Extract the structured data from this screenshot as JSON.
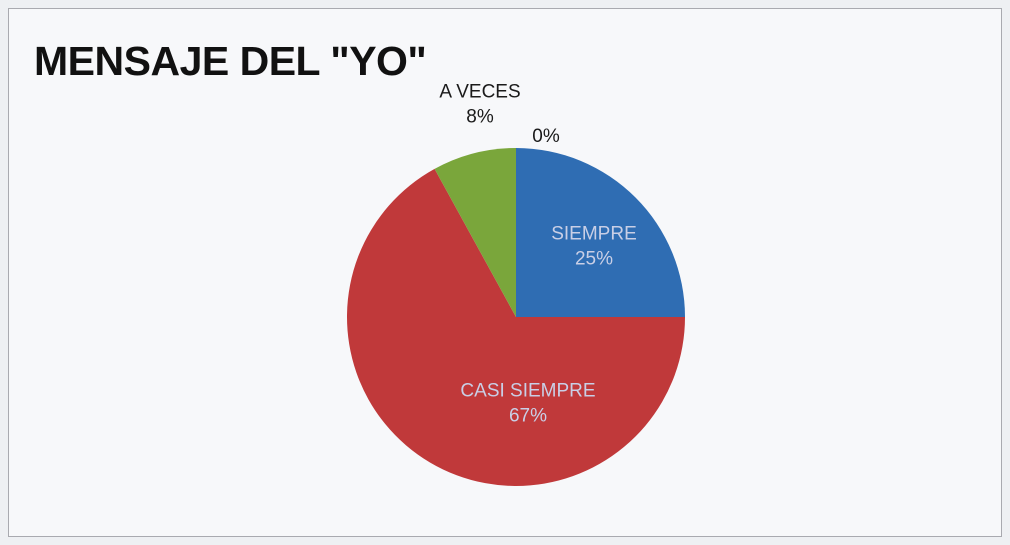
{
  "chart_data": {
    "type": "pie",
    "title": "MENSAJE DEL \"YO\"",
    "slices": [
      {
        "label": "SIEMPRE",
        "value": 25,
        "value_label": "25%",
        "color": "#2f6db3"
      },
      {
        "label": "CASI SIEMPRE",
        "value": 67,
        "value_label": "67%",
        "color": "#c0393a"
      },
      {
        "label": "A VECES",
        "value": 8,
        "value_label": "8%",
        "color": "#7aa63b"
      },
      {
        "label": "",
        "value": 0,
        "value_label": "0%",
        "color": "#7f5fa0"
      }
    ],
    "label_colors": {
      "inside": "#c9cfe6",
      "outside": "#1a1a1a"
    }
  }
}
